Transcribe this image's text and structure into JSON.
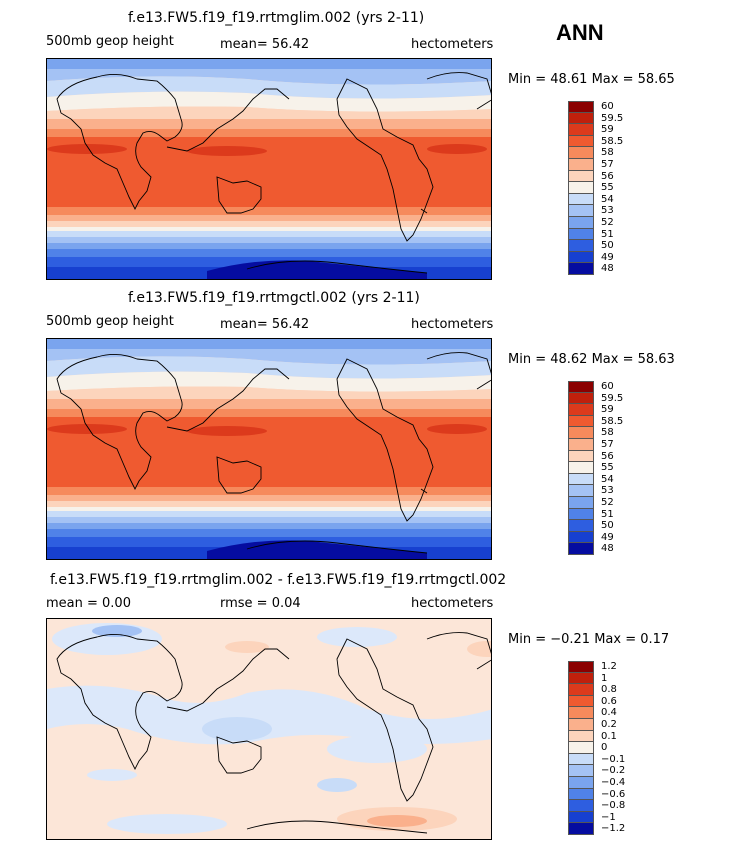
{
  "season": "ANN",
  "panels": [
    {
      "title": "f.e13.FW5.f19_f19.rrtmglim.002 (yrs 2-11)",
      "left_label": "500mb geop height",
      "center_label": "mean=   56.42",
      "units": "hectometers",
      "minmax": "Min =   48.61  Max =   58.65",
      "colorbar": {
        "labels": [
          "60",
          "59.5",
          "59",
          "58.5",
          "58",
          "57",
          "56",
          "55",
          "54",
          "53",
          "52",
          "51",
          "50",
          "49",
          "48"
        ],
        "colors": [
          "#8b0000",
          "#c0200c",
          "#dc3a1c",
          "#ef5a30",
          "#f68a5c",
          "#fab08c",
          "#fcd4bc",
          "#f7f2ea",
          "#c8dcf8",
          "#a4c2f4",
          "#7aa4ee",
          "#5082e8",
          "#2e5ee0",
          "#1740d0",
          "#050ca0"
        ]
      }
    },
    {
      "title": "f.e13.FW5.f19_f19.rrtmgctl.002 (yrs 2-11)",
      "left_label": "500mb geop height",
      "center_label": "mean=   56.42",
      "units": "hectometers",
      "minmax": "Min =   48.62  Max =   58.63",
      "colorbar": {
        "labels": [
          "60",
          "59.5",
          "59",
          "58.5",
          "58",
          "57",
          "56",
          "55",
          "54",
          "53",
          "52",
          "51",
          "50",
          "49",
          "48"
        ],
        "colors": [
          "#8b0000",
          "#c0200c",
          "#dc3a1c",
          "#ef5a30",
          "#f68a5c",
          "#fab08c",
          "#fcd4bc",
          "#f7f2ea",
          "#c8dcf8",
          "#a4c2f4",
          "#7aa4ee",
          "#5082e8",
          "#2e5ee0",
          "#1740d0",
          "#050ca0"
        ]
      }
    },
    {
      "title": "f.e13.FW5.f19_f19.rrtmglim.002 - f.e13.FW5.f19_f19.rrtmgctl.002",
      "left_label": "mean =    0.00",
      "center_label": "rmse =    0.04",
      "units": "hectometers",
      "minmax": "Min =   −0.21  Max =    0.17",
      "colorbar": {
        "labels": [
          "1.2",
          "1",
          "0.8",
          "0.6",
          "0.4",
          "0.2",
          "0.1",
          "0",
          "−0.1",
          "−0.2",
          "−0.4",
          "−0.6",
          "−0.8",
          "−1",
          "−1.2"
        ],
        "colors": [
          "#8b0000",
          "#c0200c",
          "#dc3a1c",
          "#ef5a30",
          "#f68a5c",
          "#fab08c",
          "#fcd4bc",
          "#f7f2ea",
          "#c8dcf8",
          "#a4c2f4",
          "#7aa4ee",
          "#5082e8",
          "#2e5ee0",
          "#1740d0",
          "#050ca0"
        ]
      }
    }
  ]
}
